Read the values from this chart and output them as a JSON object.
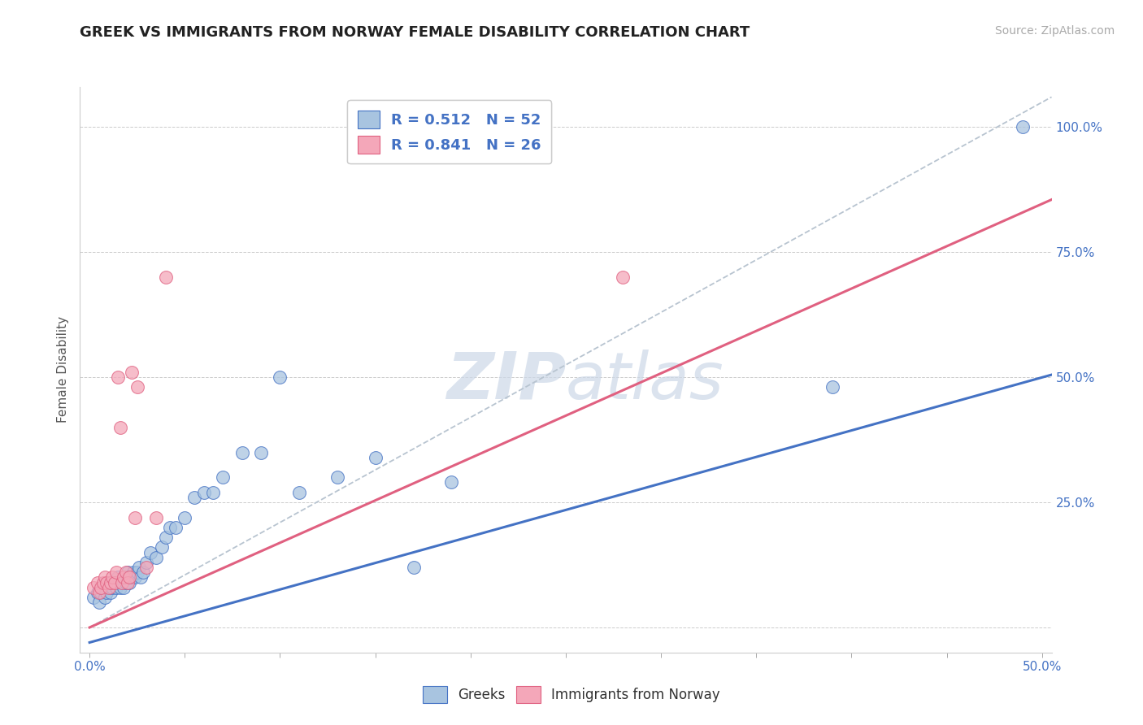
{
  "title": "GREEK VS IMMIGRANTS FROM NORWAY FEMALE DISABILITY CORRELATION CHART",
  "source": "Source: ZipAtlas.com",
  "ylabel": "Female Disability",
  "xlim": [
    -0.005,
    0.505
  ],
  "ylim": [
    -0.05,
    1.08
  ],
  "ytick_positions": [
    0.0,
    0.25,
    0.5,
    0.75,
    1.0
  ],
  "ytick_labels": [
    "",
    "25.0%",
    "50.0%",
    "75.0%",
    "100.0%"
  ],
  "greek_R": 0.512,
  "greek_N": 52,
  "norway_R": 0.841,
  "norway_N": 26,
  "greek_color": "#a8c4e0",
  "norway_color": "#f4a7b9",
  "greek_line_color": "#4472c4",
  "norway_line_color": "#e06080",
  "dashed_line_color": "#b8c4d0",
  "watermark_color": "#ccd8e8",
  "greek_scatter_x": [
    0.002,
    0.004,
    0.005,
    0.006,
    0.007,
    0.008,
    0.009,
    0.01,
    0.01,
    0.011,
    0.012,
    0.013,
    0.014,
    0.015,
    0.015,
    0.016,
    0.017,
    0.018,
    0.018,
    0.019,
    0.02,
    0.02,
    0.021,
    0.022,
    0.023,
    0.024,
    0.025,
    0.026,
    0.027,
    0.028,
    0.03,
    0.032,
    0.035,
    0.038,
    0.04,
    0.042,
    0.045,
    0.05,
    0.055,
    0.06,
    0.065,
    0.07,
    0.08,
    0.09,
    0.1,
    0.11,
    0.13,
    0.15,
    0.17,
    0.19,
    0.39,
    0.49
  ],
  "greek_scatter_y": [
    0.06,
    0.07,
    0.05,
    0.07,
    0.08,
    0.06,
    0.07,
    0.08,
    0.09,
    0.07,
    0.08,
    0.09,
    0.08,
    0.09,
    0.1,
    0.08,
    0.09,
    0.1,
    0.08,
    0.09,
    0.1,
    0.11,
    0.09,
    0.1,
    0.11,
    0.1,
    0.11,
    0.12,
    0.1,
    0.11,
    0.13,
    0.15,
    0.14,
    0.16,
    0.18,
    0.2,
    0.2,
    0.22,
    0.26,
    0.27,
    0.27,
    0.3,
    0.35,
    0.35,
    0.5,
    0.27,
    0.3,
    0.34,
    0.12,
    0.29,
    0.48,
    1.0
  ],
  "norway_scatter_x": [
    0.002,
    0.004,
    0.005,
    0.006,
    0.007,
    0.008,
    0.009,
    0.01,
    0.011,
    0.012,
    0.013,
    0.014,
    0.015,
    0.016,
    0.017,
    0.018,
    0.019,
    0.02,
    0.021,
    0.022,
    0.024,
    0.025,
    0.03,
    0.035,
    0.04,
    0.28
  ],
  "norway_scatter_y": [
    0.08,
    0.09,
    0.07,
    0.08,
    0.09,
    0.1,
    0.09,
    0.08,
    0.09,
    0.1,
    0.09,
    0.11,
    0.5,
    0.4,
    0.09,
    0.1,
    0.11,
    0.09,
    0.1,
    0.51,
    0.22,
    0.48,
    0.12,
    0.22,
    0.7,
    0.7
  ],
  "greek_trend_x": [
    0.0,
    0.505
  ],
  "greek_trend_y": [
    -0.03,
    0.505
  ],
  "norway_trend_x": [
    0.0,
    0.505
  ],
  "norway_trend_y": [
    0.0,
    0.855
  ],
  "dashed_trend_x": [
    0.0,
    0.505
  ],
  "dashed_trend_y": [
    0.0,
    1.06
  ],
  "background_color": "#ffffff",
  "plot_bg_color": "#ffffff"
}
